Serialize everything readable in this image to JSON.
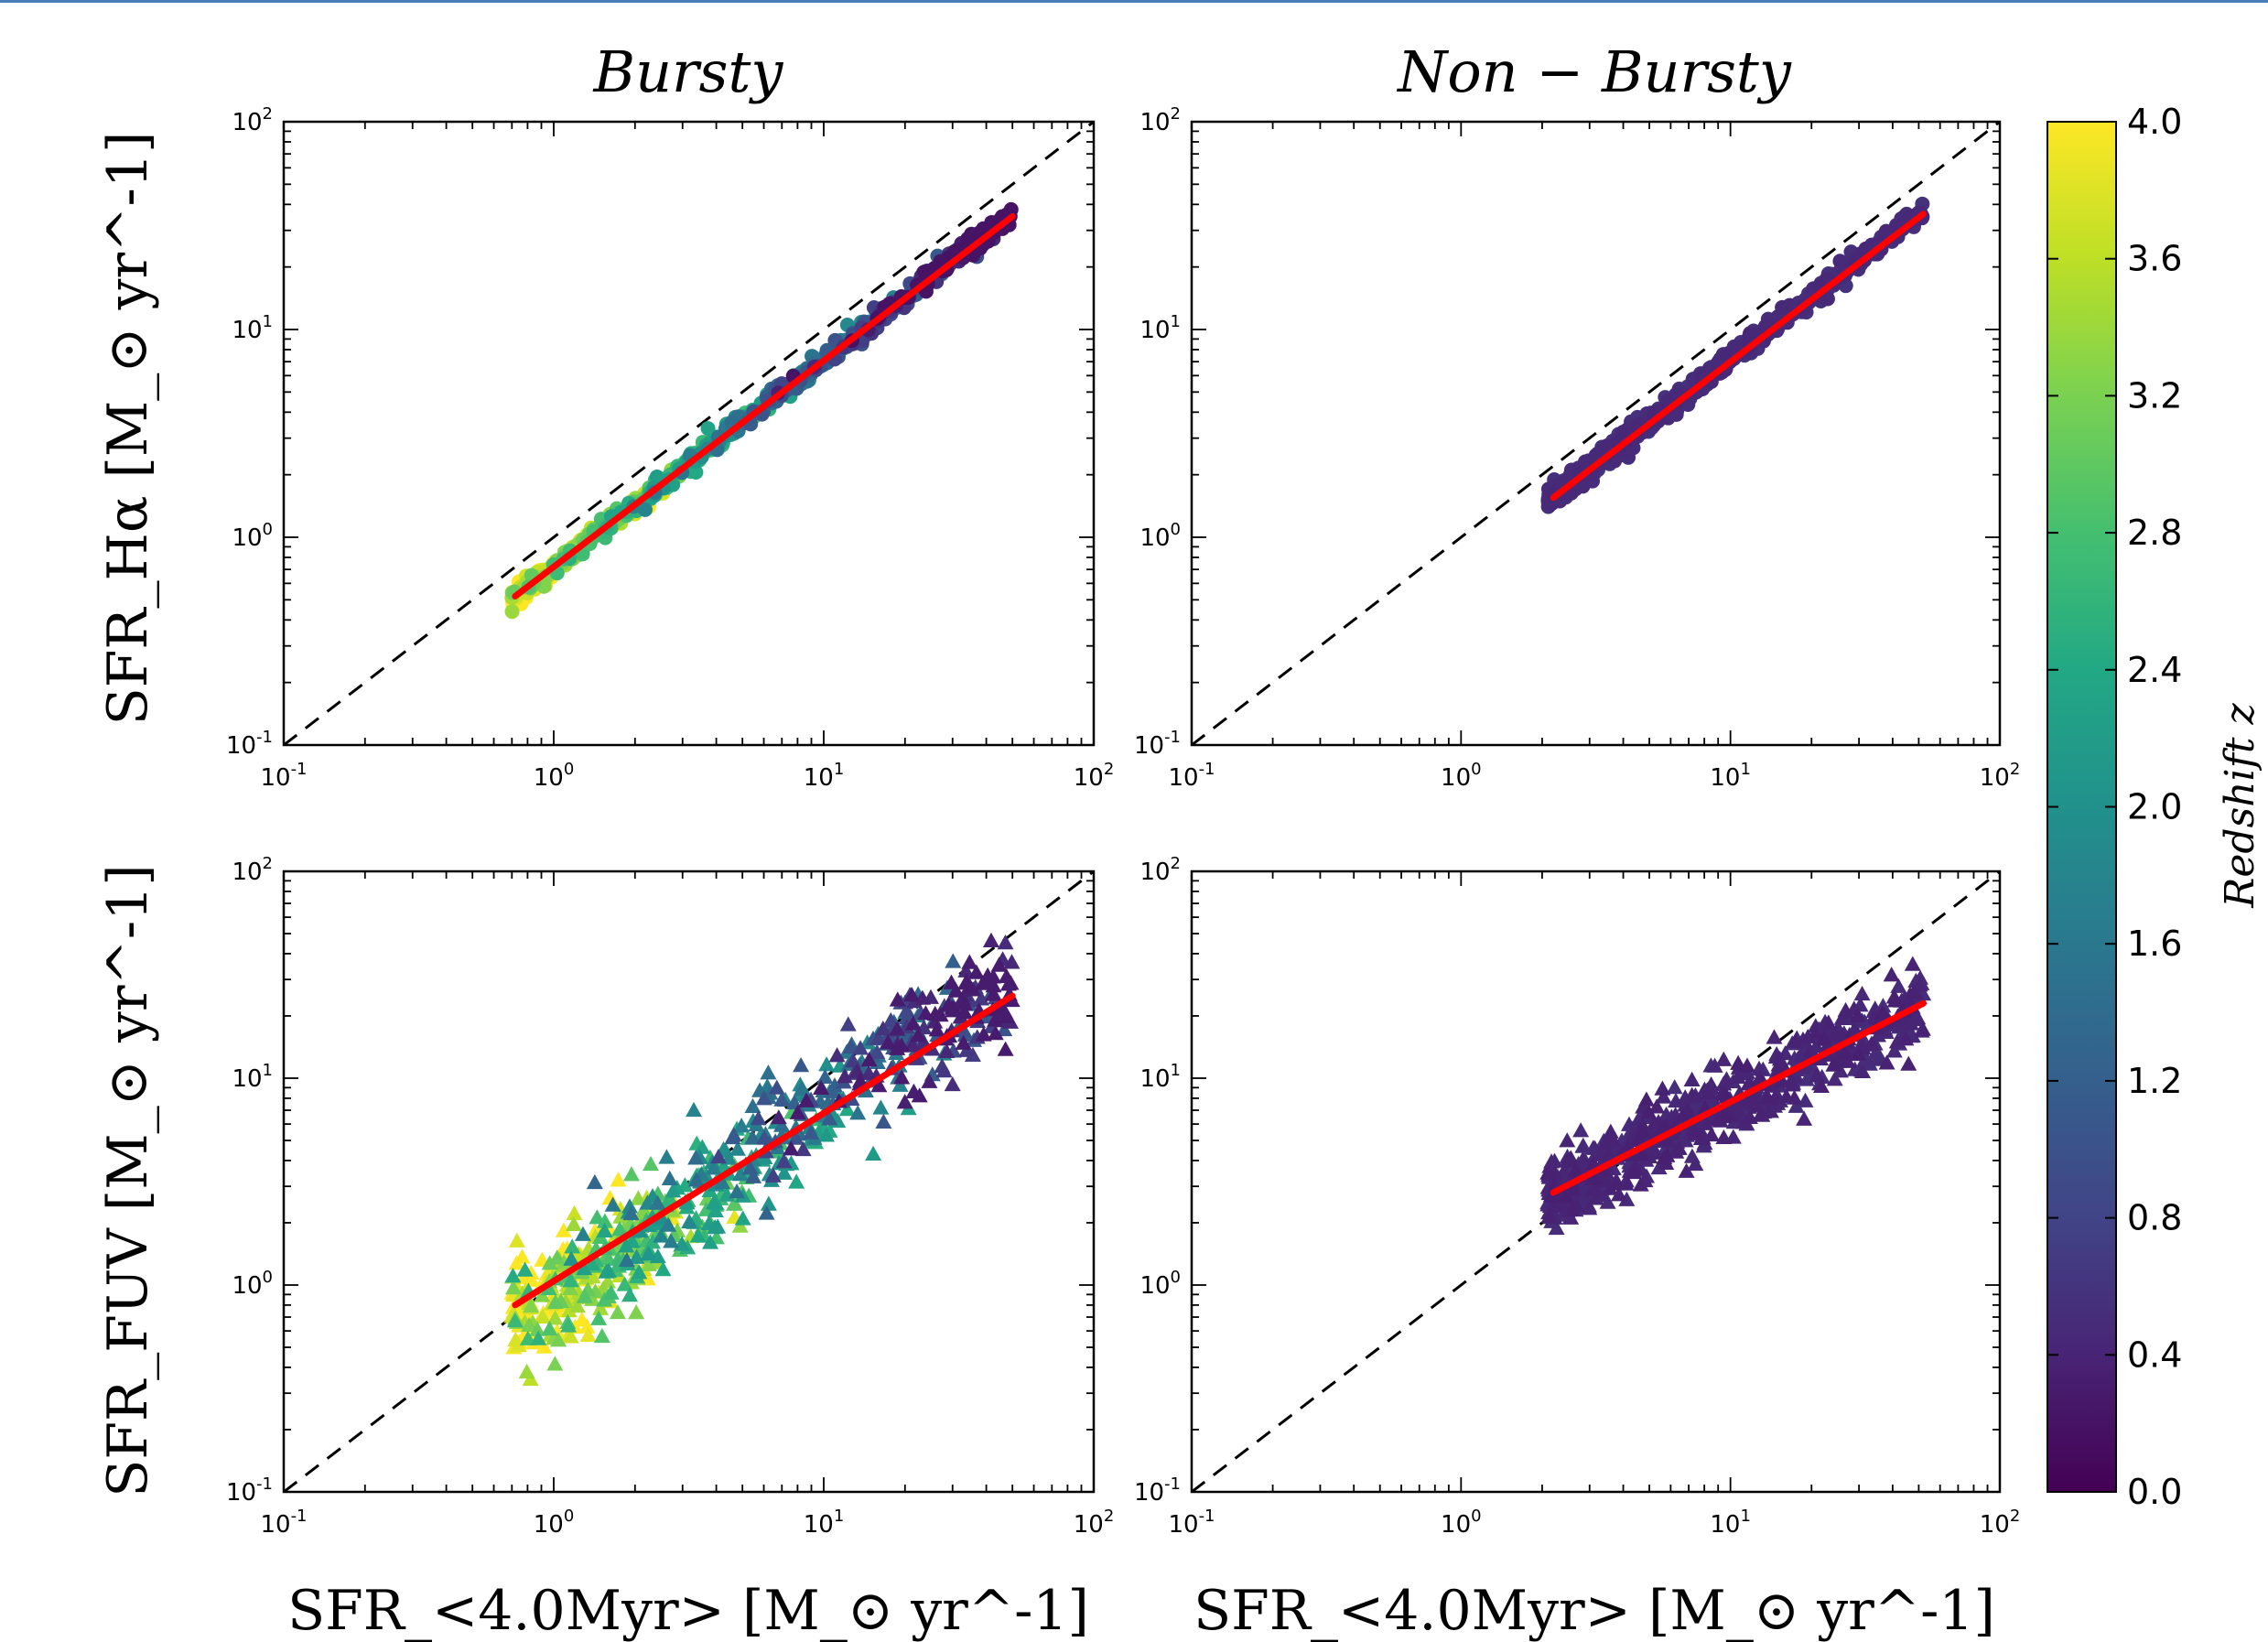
{
  "chart_data": [
    {
      "type": "scatter",
      "title": "Bursty",
      "ylabel": "SFR_Hα [M_⊙ yr^-1]",
      "xlabel": "",
      "xscale": "log",
      "yscale": "log",
      "xlim": [
        0.1,
        100
      ],
      "ylim": [
        0.1,
        100
      ],
      "x_tick_labels": [
        "10^-1",
        "10^0",
        "10^1",
        "10^2"
      ],
      "y_tick_labels": [
        "10^-1",
        "10^0",
        "10^1",
        "10^2"
      ],
      "marker": "circle",
      "points_summary": {
        "x_range": [
          0.7,
          50
        ],
        "relation": "SFR_Hα ≈ 0.72 × SFR",
        "z_range": [
          0.2,
          4.0
        ]
      },
      "fit_line": {
        "x": [
          0.72,
          50
        ],
        "y": [
          0.52,
          35
        ]
      },
      "one_to_one_line": true
    },
    {
      "type": "scatter",
      "title": "Non − Bursty",
      "ylabel": "",
      "xlabel": "",
      "xscale": "log",
      "yscale": "log",
      "xlim": [
        0.1,
        100
      ],
      "ylim": [
        0.1,
        100
      ],
      "x_tick_labels": [
        "10^-1",
        "10^0",
        "10^1",
        "10^2"
      ],
      "y_tick_labels": [
        "10^-1",
        "10^0",
        "10^1",
        "10^2"
      ],
      "marker": "circle",
      "points_summary": {
        "x_range": [
          2.1,
          52
        ],
        "relation": "SFR_Hα ≈ 0.72 × SFR",
        "z_range": [
          0.4,
          0.6
        ]
      },
      "fit_line": {
        "x": [
          2.2,
          52
        ],
        "y": [
          1.55,
          36
        ]
      },
      "one_to_one_line": true
    },
    {
      "type": "scatter",
      "title": "",
      "ylabel": "SFR_FUV [M_⊙ yr^-1]",
      "xlabel": "SFR_<4.0Myr> [M_⊙ yr^-1]",
      "xscale": "log",
      "yscale": "log",
      "xlim": [
        0.1,
        100
      ],
      "ylim": [
        0.1,
        100
      ],
      "x_tick_labels": [
        "10^-1",
        "10^0",
        "10^1",
        "10^2"
      ],
      "y_tick_labels": [
        "10^-1",
        "10^0",
        "10^1",
        "10^2"
      ],
      "marker": "triangle",
      "points_summary": {
        "x_range": [
          0.7,
          50
        ],
        "z_range": [
          0.3,
          4.0
        ]
      },
      "fit_line": {
        "x": [
          0.72,
          50
        ],
        "y": [
          0.8,
          25
        ]
      },
      "one_to_one_line": true
    },
    {
      "type": "scatter",
      "title": "",
      "ylabel": "",
      "xlabel": "SFR_<4.0Myr> [M_⊙ yr^-1]",
      "xscale": "log",
      "yscale": "log",
      "xlim": [
        0.1,
        100
      ],
      "ylim": [
        0.1,
        100
      ],
      "x_tick_labels": [
        "10^-1",
        "10^0",
        "10^1",
        "10^2"
      ],
      "y_tick_labels": [
        "10^-1",
        "10^0",
        "10^1",
        "10^2"
      ],
      "marker": "triangle",
      "points_summary": {
        "x_range": [
          2.1,
          52
        ],
        "z_range": [
          0.1,
          0.6
        ]
      },
      "fit_line": {
        "x": [
          2.2,
          52
        ],
        "y": [
          2.8,
          23
        ]
      },
      "one_to_one_line": true
    }
  ],
  "colorbar": {
    "label": "Redshift z",
    "colormap": "viridis",
    "range": [
      0.0,
      4.0
    ],
    "ticks": [
      "4.0",
      "3.6",
      "3.2",
      "2.8",
      "2.4",
      "2.0",
      "1.6",
      "1.2",
      "0.8",
      "0.4",
      "0.0"
    ]
  },
  "colors": {
    "fit": "#ff0000",
    "one_to_one": "#000000",
    "topbar": "#4a7ebb"
  }
}
